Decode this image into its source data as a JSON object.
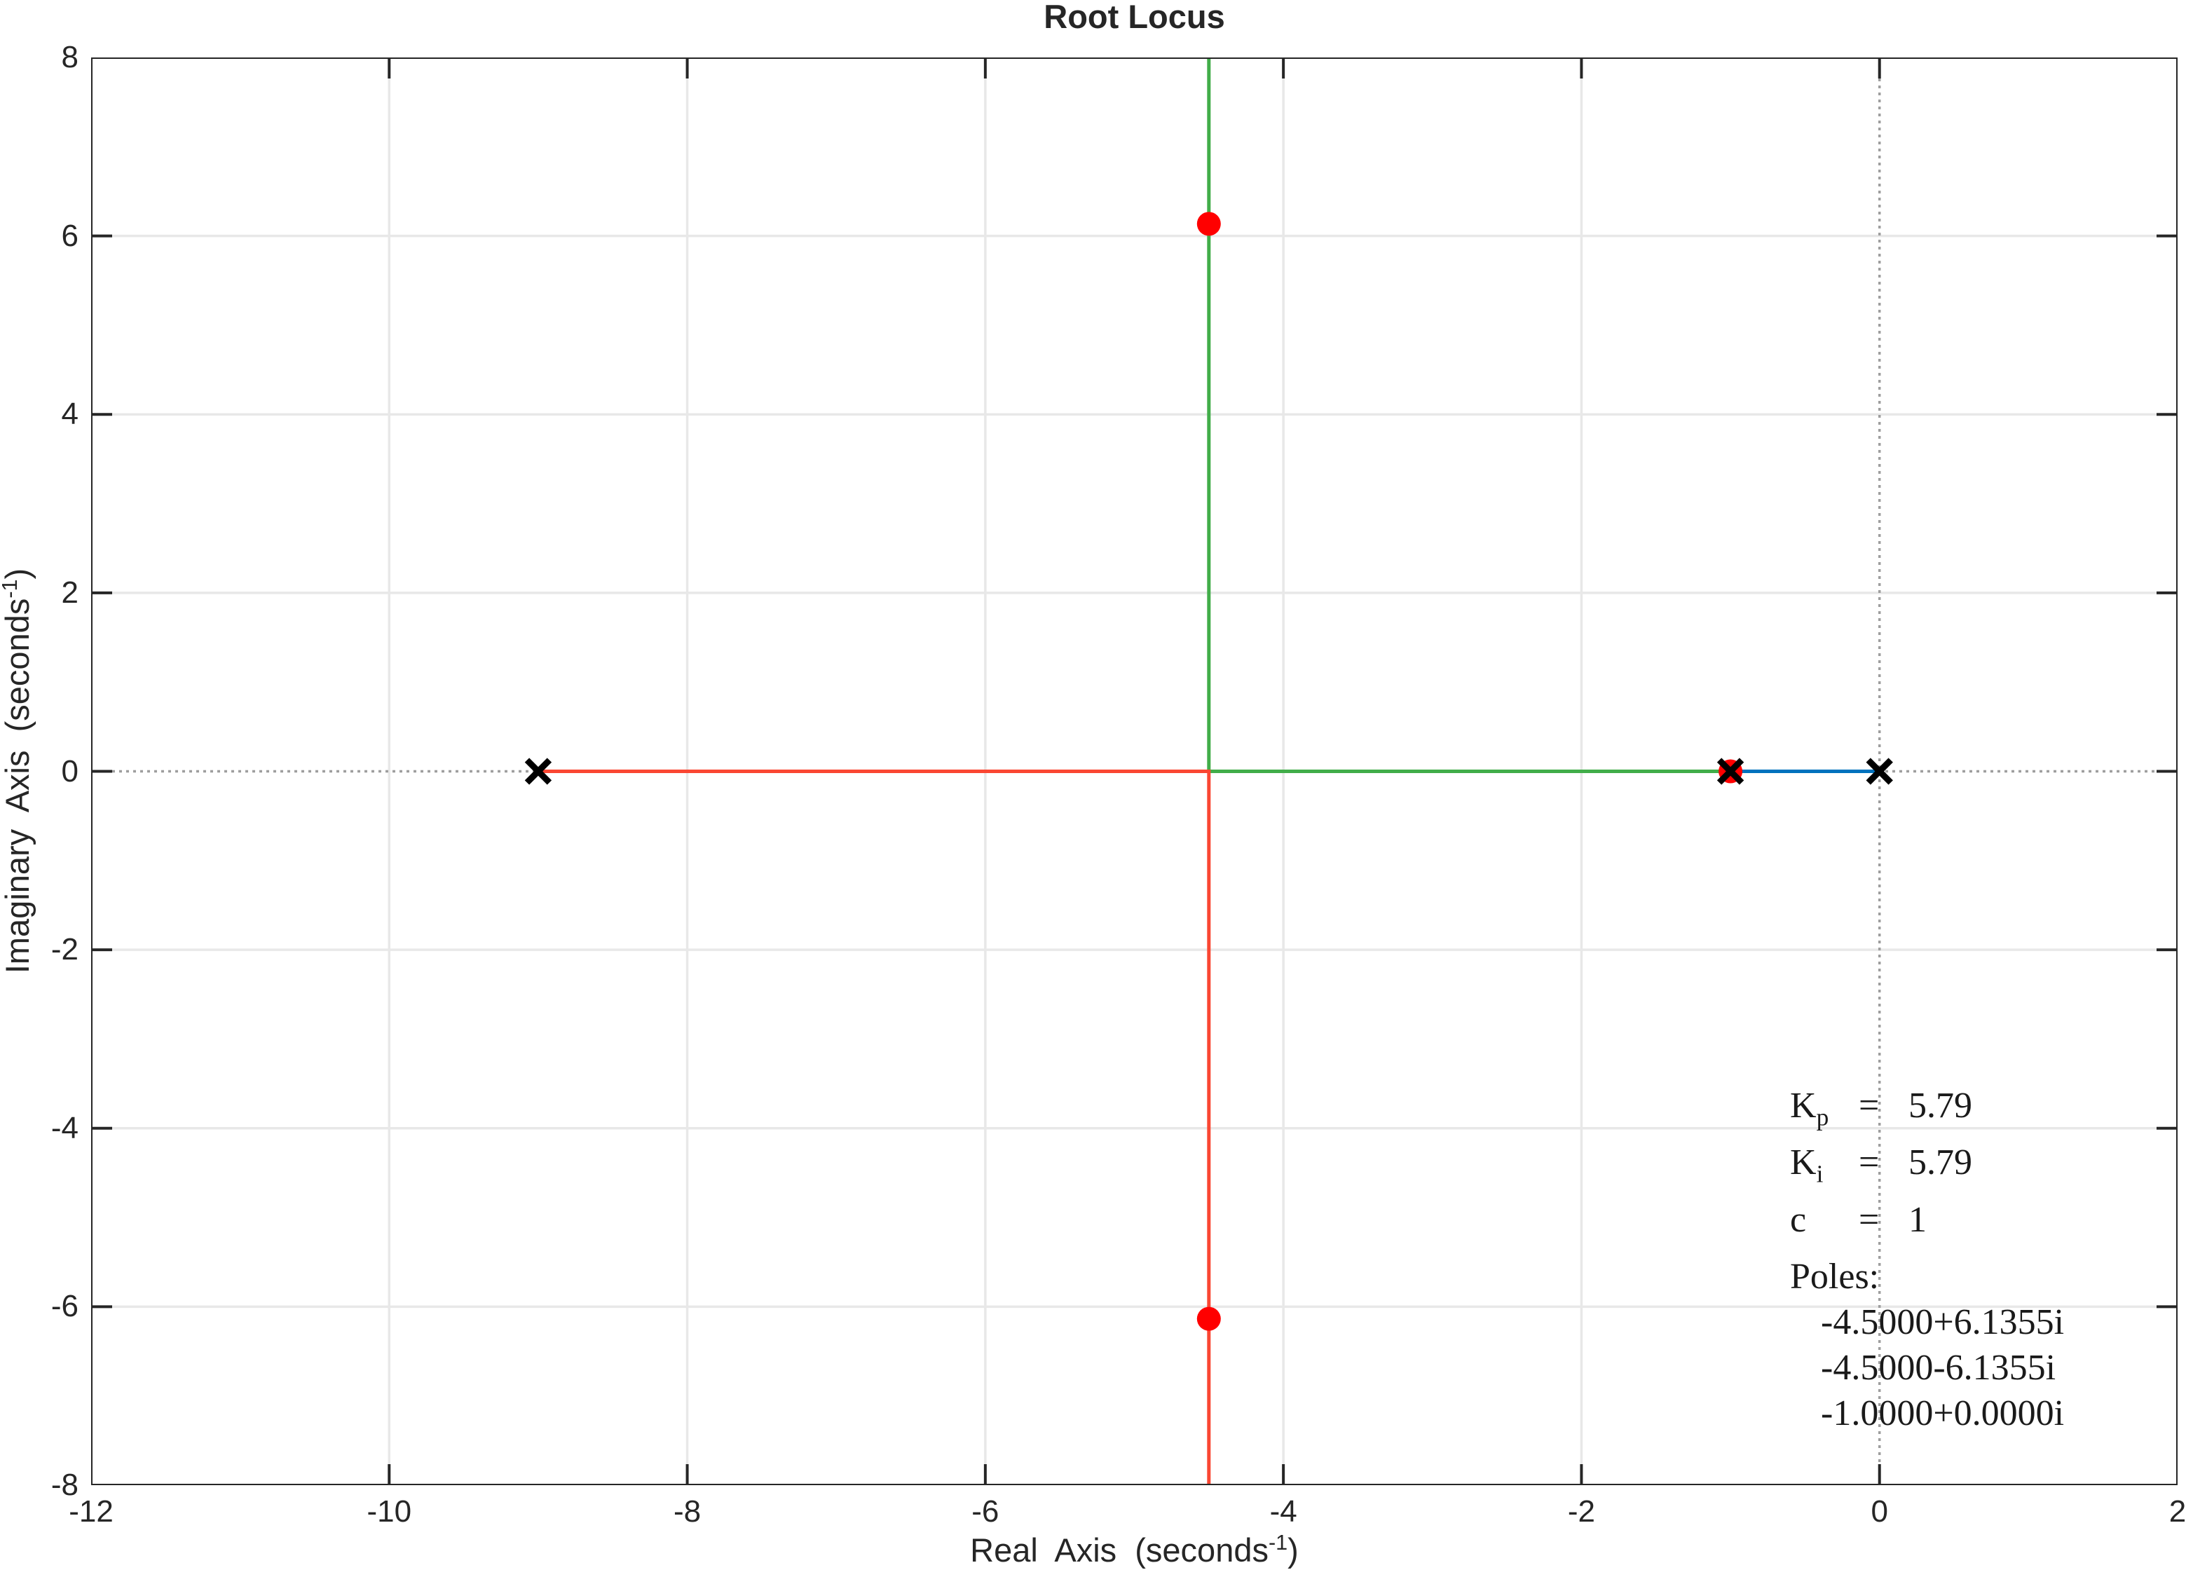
{
  "title": "Root Locus",
  "axis": {
    "xlabel": {
      "text": "Real  Axis  (seconds",
      "sup": "-1",
      "suffix": ")"
    },
    "ylabel": {
      "text": "Imaginary  Axis  (seconds",
      "sup": "-1",
      "suffix": ")"
    }
  },
  "annotation": {
    "params": [
      {
        "name": "K",
        "sub": "p",
        "eq": "=",
        "value": "5.79"
      },
      {
        "name": "K",
        "sub": "i",
        "eq": "=",
        "value": "5.79"
      },
      {
        "name": "c",
        "sub": "",
        "eq": "=",
        "value": "1"
      }
    ],
    "poles_heading": "Poles:",
    "pole_values": [
      "-4.5000+6.1355i",
      "-4.5000-6.1355i",
      "-1.0000+0.0000i"
    ]
  },
  "chart_data": {
    "type": "line",
    "title": "Root Locus",
    "xlabel": "Real Axis (seconds^-1)",
    "ylabel": "Imaginary Axis (seconds^-1)",
    "xlim": [
      -12,
      2
    ],
    "ylim": [
      -8,
      8
    ],
    "xticks": [
      -12,
      -10,
      -8,
      -6,
      -4,
      -2,
      0,
      2
    ],
    "yticks": [
      -8,
      -6,
      -4,
      -2,
      0,
      2,
      4,
      6,
      8
    ],
    "grid": true,
    "zero_axes_style": "dotted",
    "legend": "none",
    "series": [
      {
        "name": "locus-branch-blue",
        "color": "#0072bd",
        "points": [
          [
            -1,
            0
          ],
          [
            0,
            0
          ]
        ]
      },
      {
        "name": "locus-branch-green",
        "color": "#41ad49",
        "points": [
          [
            -1,
            0
          ],
          [
            -4.5,
            0
          ],
          [
            -4.5,
            8
          ]
        ]
      },
      {
        "name": "locus-branch-red",
        "color": "#fa4632",
        "points": [
          [
            -9,
            0
          ],
          [
            -4.5,
            0
          ],
          [
            -4.5,
            -8
          ]
        ]
      }
    ],
    "open_loop_poles": {
      "marker": "x",
      "color": "#000000",
      "points": [
        [
          -9,
          0
        ],
        [
          -1,
          0
        ],
        [
          0,
          0
        ]
      ]
    },
    "closed_loop_poles": {
      "marker": "circle",
      "color": "#ff0000",
      "points": [
        [
          -4.5,
          6.1355
        ],
        [
          -4.5,
          -6.1355
        ],
        [
          -1,
          0
        ]
      ]
    },
    "colors": {
      "grid": "#e8e8e8",
      "zero_axis": "#9e9e9e",
      "frame": "#262626"
    }
  }
}
